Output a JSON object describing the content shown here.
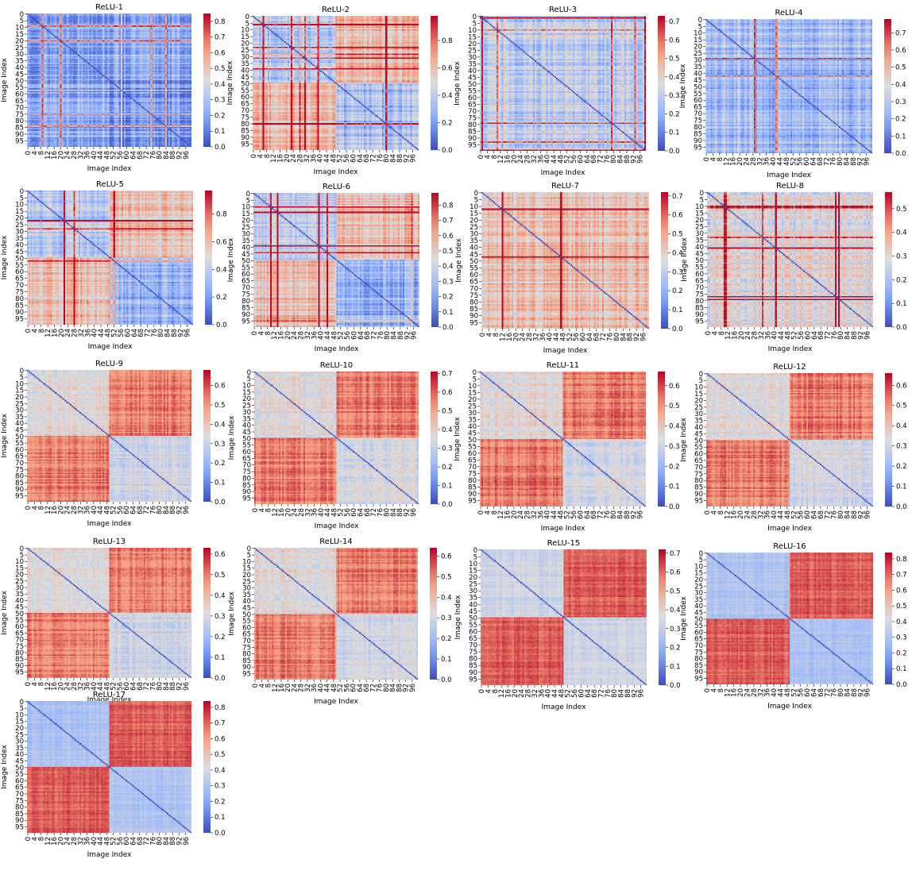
{
  "chart_data": {
    "type": "heatmap",
    "axis_label_x": "Image Index",
    "axis_label_y": "Image Index",
    "colormap": "coolwarm",
    "cmap_low": "#3b4cc0",
    "cmap_mid": "#dddddd",
    "cmap_high": "#b40426",
    "matrix_size": 100,
    "x_ticks": [
      "0",
      "4",
      "8",
      "12",
      "16",
      "20",
      "24",
      "28",
      "32",
      "36",
      "40",
      "44",
      "48",
      "52",
      "56",
      "60",
      "64",
      "68",
      "72",
      "76",
      "80",
      "84",
      "88",
      "92",
      "96"
    ],
    "y_ticks": [
      "0",
      "5",
      "10",
      "15",
      "20",
      "25",
      "30",
      "35",
      "40",
      "45",
      "50",
      "55",
      "60",
      "65",
      "70",
      "75",
      "80",
      "85",
      "90",
      "95"
    ],
    "panels": [
      {
        "title": "ReLU-1",
        "vmax": 0.85,
        "cbar_ticks": [
          "0.0",
          "0.1",
          "0.2",
          "0.3",
          "0.4",
          "0.5",
          "0.6",
          "0.7",
          "0.8"
        ]
      },
      {
        "title": "ReLU-2",
        "vmax": 0.98,
        "cbar_ticks": [
          "0.0",
          "0.2",
          "0.4",
          "0.6",
          "0.8"
        ]
      },
      {
        "title": "ReLU-3",
        "vmax": 0.73,
        "cbar_ticks": [
          "0.0",
          "0.1",
          "0.2",
          "0.3",
          "0.4",
          "0.5",
          "0.6",
          "0.7"
        ]
      },
      {
        "title": "ReLU-4",
        "vmax": 0.78,
        "cbar_ticks": [
          "0.0",
          "0.1",
          "0.2",
          "0.3",
          "0.4",
          "0.5",
          "0.6",
          "0.7"
        ]
      },
      {
        "title": "ReLU-5",
        "vmax": 0.97,
        "cbar_ticks": [
          "0.0",
          "0.2",
          "0.4",
          "0.6",
          "0.8"
        ]
      },
      {
        "title": "ReLU-6",
        "vmax": 0.88,
        "cbar_ticks": [
          "0.0",
          "0.1",
          "0.2",
          "0.3",
          "0.4",
          "0.5",
          "0.6",
          "0.7",
          "0.8"
        ]
      },
      {
        "title": "ReLU-7",
        "vmax": 0.72,
        "cbar_ticks": [
          "0.0",
          "0.1",
          "0.2",
          "0.3",
          "0.4",
          "0.5",
          "0.6",
          "0.7"
        ]
      },
      {
        "title": "ReLU-8",
        "vmax": 0.57,
        "cbar_ticks": [
          "0.0",
          "0.1",
          "0.2",
          "0.3",
          "0.4",
          "0.5"
        ]
      },
      {
        "title": "ReLU-9",
        "vmax": 0.68,
        "cbar_ticks": [
          "0.0",
          "0.1",
          "0.2",
          "0.3",
          "0.4",
          "0.5",
          "0.6"
        ]
      },
      {
        "title": "ReLU-10",
        "vmax": 0.71,
        "cbar_ticks": [
          "0.0",
          "0.1",
          "0.2",
          "0.3",
          "0.4",
          "0.5",
          "0.6",
          "0.7"
        ]
      },
      {
        "title": "ReLU-11",
        "vmax": 0.67,
        "cbar_ticks": [
          "0.0",
          "0.1",
          "0.2",
          "0.3",
          "0.4",
          "0.5",
          "0.6"
        ]
      },
      {
        "title": "ReLU-12",
        "vmax": 0.66,
        "cbar_ticks": [
          "0.0",
          "0.1",
          "0.2",
          "0.3",
          "0.4",
          "0.5",
          "0.6"
        ]
      },
      {
        "title": "ReLU-13",
        "vmax": 0.63,
        "cbar_ticks": [
          "0.0",
          "0.1",
          "0.2",
          "0.3",
          "0.4",
          "0.5",
          "0.6"
        ]
      },
      {
        "title": "ReLU-14",
        "vmax": 0.64,
        "cbar_ticks": [
          "0.0",
          "0.1",
          "0.2",
          "0.3",
          "0.4",
          "0.5",
          "0.6"
        ]
      },
      {
        "title": "ReLU-15",
        "vmax": 0.72,
        "cbar_ticks": [
          "0.0",
          "0.1",
          "0.2",
          "0.3",
          "0.4",
          "0.5",
          "0.6",
          "0.7"
        ]
      },
      {
        "title": "ReLU-16",
        "vmax": 0.84,
        "cbar_ticks": [
          "0.0",
          "0.1",
          "0.2",
          "0.3",
          "0.4",
          "0.5",
          "0.6",
          "0.7",
          "0.8"
        ]
      },
      {
        "title": "ReLU-17",
        "vmax": 0.84,
        "cbar_ticks": [
          "0.0",
          "0.1",
          "0.2",
          "0.3",
          "0.4",
          "0.5",
          "0.6",
          "0.7",
          "0.8"
        ]
      }
    ]
  }
}
